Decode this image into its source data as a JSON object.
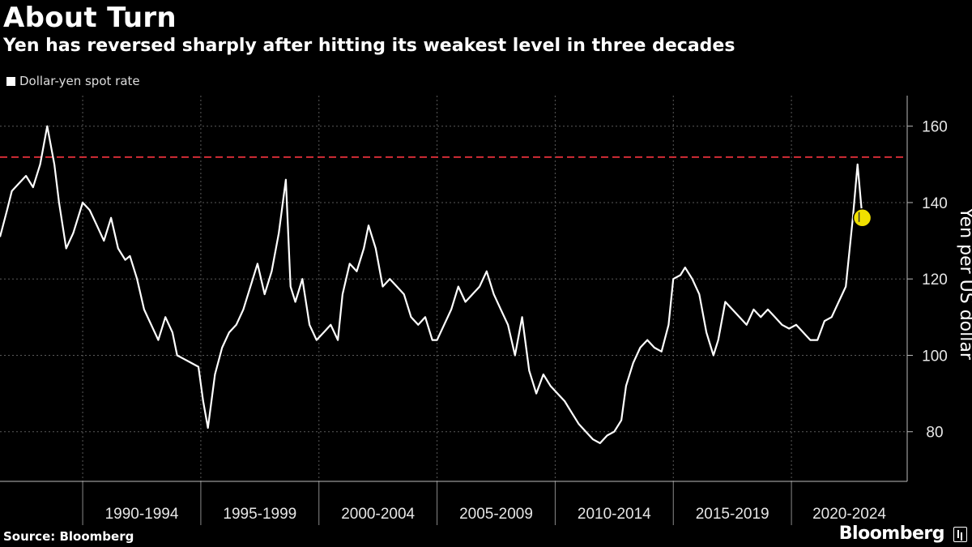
{
  "header": {
    "title": "About Turn",
    "subtitle": "Yen has reversed sharply after hitting its weakest level in three decades"
  },
  "footer": {
    "source": "Source: Bloomberg",
    "brand": "Bloomberg"
  },
  "colors": {
    "background": "#000000",
    "line": "#ffffff",
    "reference_line": "#e8313b",
    "marker": "#f0e000"
  },
  "chart_data": {
    "type": "line",
    "legend": [
      "Dollar-yen spot rate"
    ],
    "legend_position": "top-left",
    "ylabel": "Yen per US dollar",
    "xlabel": "",
    "ylim": [
      67,
      168
    ],
    "xlim": [
      1986.5,
      2024.9
    ],
    "y_ticks": [
      80,
      100,
      120,
      140,
      160
    ],
    "x_tick_labels": [
      "1990-1994",
      "1995-1999",
      "2000-2004",
      "2005-2009",
      "2010-2014",
      "2015-2019",
      "2020-2024"
    ],
    "x_tick_ranges": [
      [
        1990,
        1994
      ],
      [
        1995,
        1999
      ],
      [
        2000,
        2004
      ],
      [
        2005,
        2009
      ],
      [
        2010,
        2014
      ],
      [
        2015,
        2019
      ],
      [
        2020,
        2024
      ]
    ],
    "grid": true,
    "reference_line": {
      "y": 151.9
    },
    "highlight_point": {
      "x": 2023.0,
      "y": 136
    },
    "series": [
      {
        "name": "Dollar-yen spot rate",
        "x": [
          1986.5,
          1986.8,
          1987.0,
          1987.3,
          1987.6,
          1987.9,
          1988.2,
          1988.5,
          1988.8,
          1989.0,
          1989.3,
          1989.6,
          1990.0,
          1990.3,
          1990.6,
          1990.9,
          1991.2,
          1991.5,
          1991.8,
          1992.0,
          1992.3,
          1992.6,
          1992.9,
          1993.2,
          1993.5,
          1993.8,
          1994.0,
          1994.3,
          1994.6,
          1994.9,
          1995.1,
          1995.3,
          1995.6,
          1995.9,
          1996.2,
          1996.5,
          1996.8,
          1997.1,
          1997.4,
          1997.7,
          1998.0,
          1998.3,
          1998.6,
          1998.8,
          1999.0,
          1999.3,
          1999.6,
          1999.9,
          2000.2,
          2000.5,
          2000.8,
          2001.0,
          2001.3,
          2001.6,
          2001.9,
          2002.1,
          2002.4,
          2002.7,
          2003.0,
          2003.3,
          2003.6,
          2003.9,
          2004.2,
          2004.5,
          2004.8,
          2005.0,
          2005.3,
          2005.6,
          2005.9,
          2006.2,
          2006.5,
          2006.8,
          2007.1,
          2007.4,
          2007.7,
          2008.0,
          2008.3,
          2008.6,
          2008.9,
          2009.2,
          2009.5,
          2009.8,
          2010.1,
          2010.4,
          2010.7,
          2011.0,
          2011.3,
          2011.6,
          2011.9,
          2012.2,
          2012.5,
          2012.8,
          2013.0,
          2013.3,
          2013.6,
          2013.9,
          2014.2,
          2014.5,
          2014.8,
          2015.0,
          2015.3,
          2015.5,
          2015.8,
          2016.1,
          2016.4,
          2016.7,
          2016.9,
          2017.2,
          2017.5,
          2017.8,
          2018.1,
          2018.4,
          2018.7,
          2019.0,
          2019.3,
          2019.6,
          2019.9,
          2020.2,
          2020.5,
          2020.8,
          2021.1,
          2021.4,
          2021.7,
          2022.0,
          2022.3,
          2022.6,
          2022.8,
          2023.0
        ],
        "values": [
          131,
          138,
          143,
          145,
          147,
          144,
          150,
          160,
          150,
          140,
          128,
          132,
          140,
          138,
          134,
          130,
          136,
          128,
          125,
          126,
          120,
          112,
          108,
          104,
          110,
          106,
          100,
          99,
          98,
          97,
          88,
          81,
          95,
          102,
          106,
          108,
          112,
          118,
          124,
          116,
          122,
          132,
          146,
          118,
          114,
          120,
          108,
          104,
          106,
          108,
          104,
          116,
          124,
          122,
          128,
          134,
          128,
          118,
          120,
          118,
          116,
          110,
          108,
          110,
          104,
          104,
          108,
          112,
          118,
          114,
          116,
          118,
          122,
          116,
          112,
          108,
          100,
          110,
          96,
          90,
          95,
          92,
          90,
          88,
          85,
          82,
          80,
          78,
          77,
          79,
          80,
          83,
          92,
          98,
          102,
          104,
          102,
          101,
          108,
          120,
          121,
          123,
          120,
          116,
          106,
          100,
          104,
          114,
          112,
          110,
          108,
          112,
          110,
          112,
          110,
          108,
          107,
          108,
          106,
          104,
          104,
          109,
          110,
          114,
          118,
          136,
          150,
          136
        ]
      }
    ]
  }
}
